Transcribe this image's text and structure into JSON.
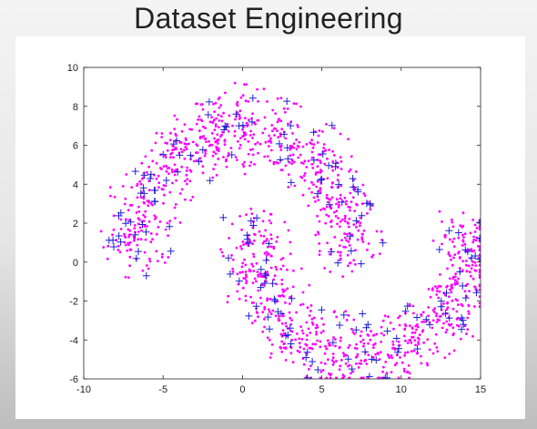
{
  "slide": {
    "title": "Dataset Engineering"
  },
  "chart_data": {
    "type": "scatter",
    "title": "",
    "xlabel": "",
    "ylabel": "",
    "xlim": [
      -10,
      15
    ],
    "ylim": [
      -6,
      10
    ],
    "xticks": [
      -10,
      -5,
      0,
      5,
      10,
      15
    ],
    "yticks": [
      -6,
      -4,
      -2,
      0,
      2,
      4,
      6,
      8,
      10
    ],
    "grid": false,
    "legend": "none",
    "series": [
      {
        "marker": "dot",
        "color": "#ff00ff",
        "description": "two interleaving half-moons (upper moon centered at (0,0) radius ~8, lower moon centered at (7.5,2) radius ~8)",
        "count": 1400
      },
      {
        "marker": "plus",
        "color": "#1f1fd6",
        "count": 170
      }
    ]
  }
}
